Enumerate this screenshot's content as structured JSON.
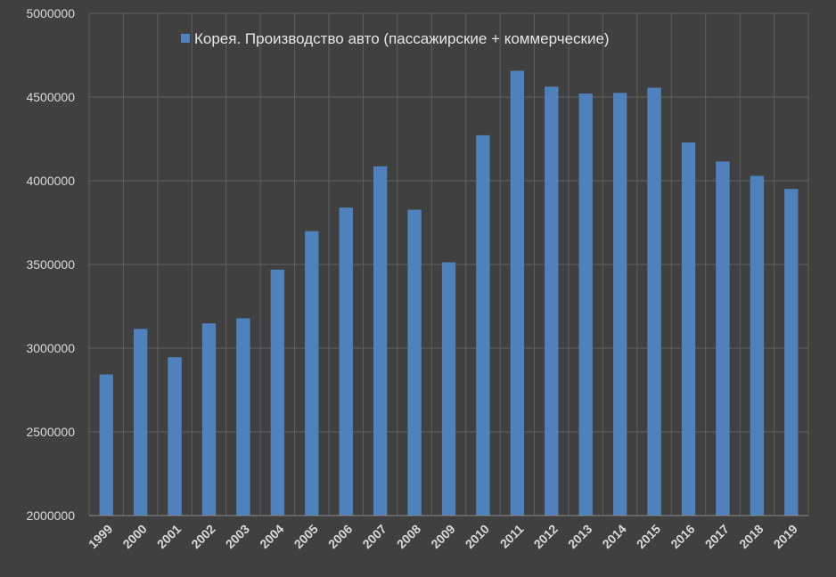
{
  "chart_data": {
    "type": "bar",
    "categories": [
      "1999",
      "2000",
      "2001",
      "2002",
      "2003",
      "2004",
      "2005",
      "2006",
      "2007",
      "2008",
      "2009",
      "2010",
      "2011",
      "2012",
      "2013",
      "2014",
      "2015",
      "2016",
      "2017",
      "2018",
      "2019"
    ],
    "series": [
      {
        "name": "Корея. Производство авто (пассажирские + коммерческие)",
        "values": [
          2843000,
          3115000,
          2946000,
          3148000,
          3178000,
          3469000,
          3699000,
          3840000,
          4086000,
          3827000,
          3513000,
          4272000,
          4657000,
          4562000,
          4521000,
          4525000,
          4556000,
          4229000,
          4115000,
          4029000,
          3951000
        ],
        "color": "#4f81bd"
      }
    ],
    "ylim": [
      2000000,
      5000000
    ],
    "yticks": [
      "2000000",
      "2500000",
      "3000000",
      "3500000",
      "4000000",
      "4500000",
      "5000000"
    ],
    "grid": true,
    "legend_position": "top-center"
  },
  "colors": {
    "background": "#404040",
    "bar": "#4f81bd",
    "gridline": "#5f5f5f",
    "text": "#d9d9d9"
  }
}
